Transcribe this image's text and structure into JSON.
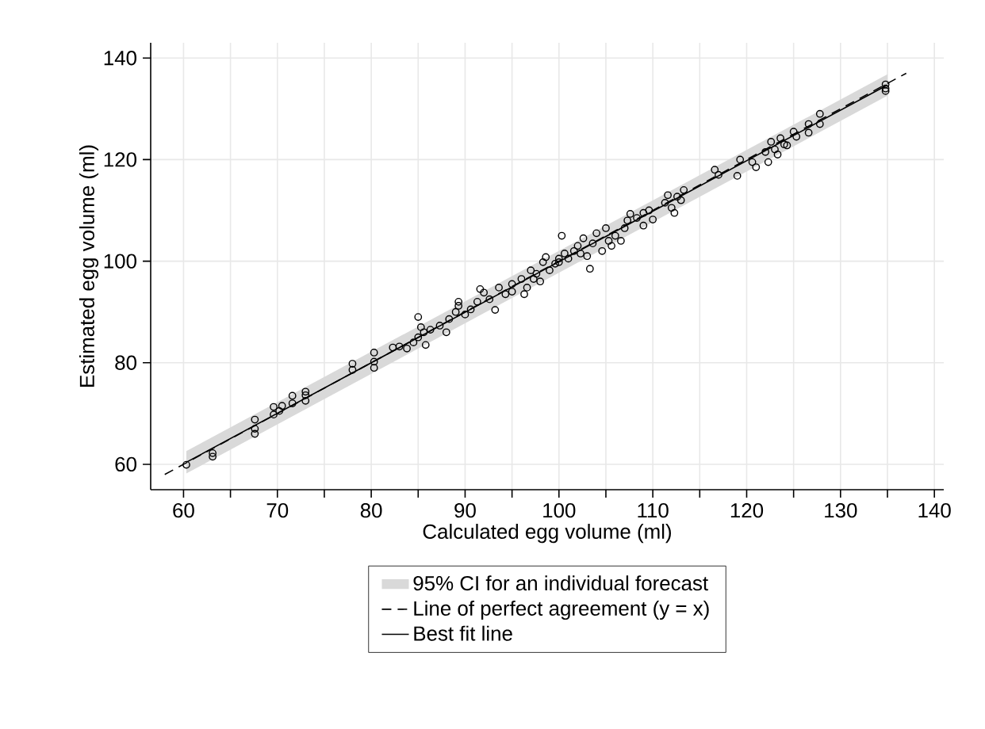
{
  "chart_data": {
    "type": "scatter",
    "xlabel": "Calculated egg volume (ml)",
    "ylabel": "Estimated egg volume (ml)",
    "xlim": [
      56.5,
      141
    ],
    "ylim": [
      55,
      143
    ],
    "xticks": [
      60,
      {
        "value": 65,
        "label": null
      },
      70,
      {
        "value": 75,
        "label": null
      },
      80,
      {
        "value": 85,
        "label": null
      },
      90,
      {
        "value": 95,
        "label": null
      },
      100,
      {
        "value": 105,
        "label": null
      },
      110,
      {
        "value": 115,
        "label": null
      },
      120,
      {
        "value": 125,
        "label": null
      },
      130,
      {
        "value": 135,
        "label": null
      },
      140
    ],
    "yticks": [
      60,
      80,
      100,
      120,
      140
    ],
    "grid": true,
    "legend": "bottom",
    "annotations": [
      "95% CI for an individual forecast"
    ],
    "series": [
      {
        "name": "Line of perfect agreement (y = x)",
        "type": "line",
        "line_style": "dashed",
        "color": "#000000",
        "x": [
          58,
          137
        ],
        "values": [
          58,
          137
        ]
      },
      {
        "name": "Best fit line",
        "type": "line",
        "line_style": "solid",
        "color": "#000000",
        "x": [
          60.3,
          135
        ],
        "values": [
          60.4,
          134.7
        ],
        "lower": [
          58.2,
          132.6
        ],
        "upper": [
          62.6,
          136.8
        ]
      },
      {
        "marker": "circle",
        "color": "#000000",
        "x": [
          60.3,
          63.1,
          63.1,
          67.6,
          67.6,
          67.6,
          69.6,
          69.6,
          70.2,
          70.5,
          71.6,
          71.6,
          73,
          73,
          73,
          78,
          78,
          80.3,
          80.3,
          80.3,
          82.3,
          83,
          83.8,
          84.5,
          85,
          85,
          85.3,
          85.6,
          85.8,
          86.3,
          87.3,
          88,
          88.3,
          89,
          89.3,
          89.3,
          90,
          90.6,
          91.3,
          91.6,
          92,
          92.6,
          93.2,
          93.6,
          94.3,
          95,
          95,
          96,
          96.3,
          96.6,
          97,
          97.3,
          97.6,
          98,
          98.3,
          98.6,
          99,
          99.6,
          100,
          100.3,
          100.6,
          100,
          101,
          101.6,
          102,
          102.3,
          102.6,
          103,
          103.3,
          103.6,
          104,
          104.6,
          105,
          105.3,
          105.6,
          106,
          106.6,
          107,
          107.3,
          107.6,
          108.3,
          109,
          109,
          109.6,
          110,
          111.3,
          111.6,
          112,
          112.3,
          112.6,
          113,
          113.3,
          116.6,
          117,
          119,
          119.3,
          120.6,
          121,
          122,
          122.3,
          122.6,
          123,
          123.3,
          123.6,
          124,
          124.3,
          125,
          125.3,
          126.6,
          126.6,
          127.8,
          127.8,
          134.8,
          134.8,
          134.8
        ],
        "values": [
          59.9,
          61.5,
          62.2,
          66,
          67,
          68.8,
          69.8,
          71.3,
          70.5,
          71.5,
          72,
          73.5,
          72.5,
          73.6,
          74.3,
          78.6,
          79.8,
          79,
          80.2,
          82,
          83,
          83.2,
          82.8,
          84,
          85,
          89,
          87,
          86,
          83.5,
          86.5,
          87.3,
          86,
          88.6,
          90,
          92,
          91.2,
          89.5,
          90.5,
          92,
          94.5,
          93.8,
          92.5,
          90.4,
          94.8,
          93.5,
          95.5,
          94,
          96.5,
          93.5,
          94.8,
          98.2,
          96.5,
          97.5,
          96,
          99.8,
          100.8,
          98.2,
          99.5,
          100.5,
          105,
          101.5,
          99.8,
          100.5,
          102,
          103,
          101.5,
          104.5,
          101,
          98.5,
          103.5,
          105.5,
          102,
          106.5,
          104,
          103,
          105,
          104,
          106.5,
          108,
          109.3,
          108.5,
          107,
          109.5,
          110,
          108.2,
          111.5,
          113,
          110.5,
          109.5,
          112.7,
          112,
          114,
          118,
          117,
          116.8,
          120,
          119.5,
          118.5,
          121.5,
          119.5,
          123.5,
          122,
          121,
          124.2,
          123,
          122.8,
          125.5,
          124.5,
          127,
          125.3,
          129,
          127,
          134.8,
          134,
          133.5
        ]
      }
    ]
  }
}
